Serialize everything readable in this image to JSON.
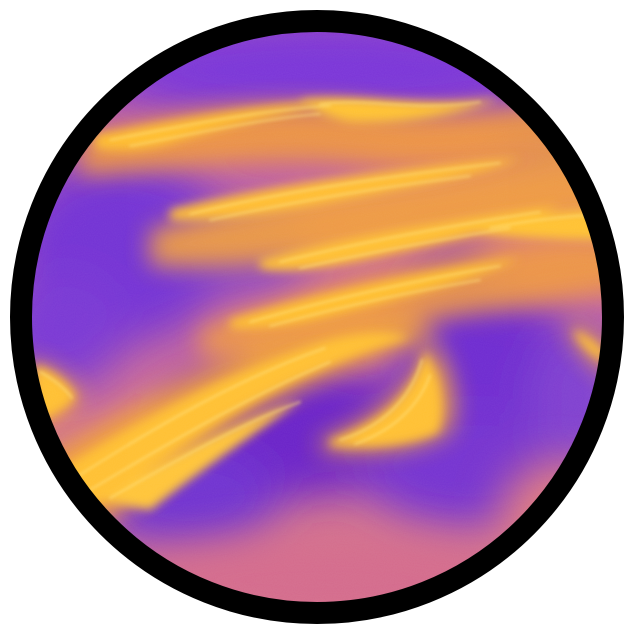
{
  "image": {
    "subject": "planet-disc",
    "colors": {
      "background": "#ffffff",
      "rim": "#000000",
      "base": "#c86a9a",
      "violet": "#7a34d8",
      "deep_violet": "#6a22c8",
      "orange": "#f5a428",
      "gold": "#ffc030",
      "highlight": "#ffe07a",
      "magenta": "#d46a8c"
    }
  }
}
